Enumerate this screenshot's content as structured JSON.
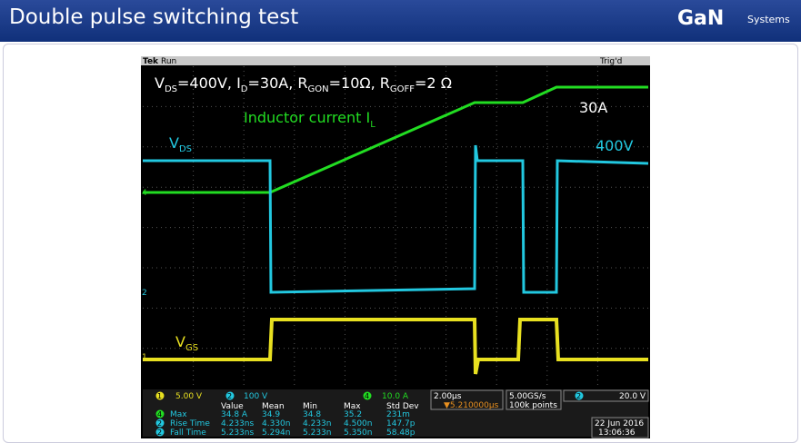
{
  "header": {
    "title": "Double pulse switching test",
    "logo": "GaN",
    "logo_sub": "Systems"
  },
  "scope": {
    "brand": "Tek",
    "state": "Run",
    "trigger": "Trig'd",
    "conditions": [
      "V",
      "DS",
      "=400V, I",
      "D",
      "=30A, R",
      "GON",
      "=10Ω, R",
      "GOFF",
      "=2 Ω"
    ],
    "labels": {
      "inductor": [
        "Inductor current I",
        "L"
      ],
      "vds": [
        "V",
        "DS"
      ],
      "vds_value": "400V",
      "current_value": "30A",
      "vgs": [
        "V",
        "GS"
      ]
    },
    "channels": [
      {
        "id": "1",
        "scale": "5.00 V"
      },
      {
        "id": "2",
        "scale": "100 V"
      },
      {
        "id": "4",
        "scale": "10.0 A"
      }
    ],
    "timebase": "2.00µs",
    "trigger_pos": "▼5.210000µs",
    "sample_rate": "5.00GS/s",
    "record": "100k points",
    "trigger_level": "20.0 V",
    "measurements": {
      "columns": [
        "Value",
        "Mean",
        "Min",
        "Max",
        "Std Dev"
      ],
      "rows": [
        {
          "channel": "4",
          "name": "Max",
          "cells": [
            "34.8 A",
            "34.9",
            "34.8",
            "35.2",
            "231m"
          ]
        },
        {
          "channel": "2",
          "name": "Rise Time",
          "cells": [
            "4.233ns",
            "4.330n",
            "4.233n",
            "4.500n",
            "147.7p"
          ]
        },
        {
          "channel": "2",
          "name": "Fall Time",
          "cells": [
            "5.233ns",
            "5.294n",
            "5.233n",
            "5.350n",
            "58.48p"
          ]
        }
      ]
    },
    "date": "22 Jun 2016",
    "time": "13:06:36"
  }
}
